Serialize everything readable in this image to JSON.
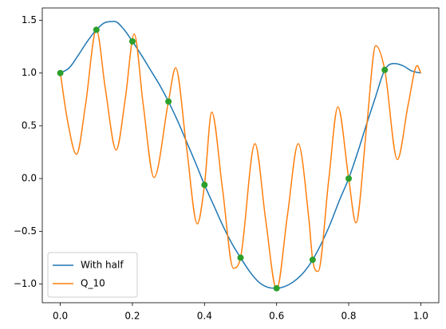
{
  "chart_data": {
    "type": "line",
    "xlim": [
      -0.05,
      1.05
    ],
    "ylim": [
      -1.177,
      1.617
    ],
    "xticks": [
      {
        "value": 0,
        "label": "0.0"
      },
      {
        "value": 0.2,
        "label": "0.2"
      },
      {
        "value": 0.4,
        "label": "0.4"
      },
      {
        "value": 0.6,
        "label": "0.6"
      },
      {
        "value": 0.8,
        "label": "0.8"
      },
      {
        "value": 1,
        "label": "1.0"
      }
    ],
    "yticks": [
      {
        "value": -1,
        "label": "−1.0"
      },
      {
        "value": -0.5,
        "label": "−0.5"
      },
      {
        "value": 0,
        "label": "0.0"
      },
      {
        "value": 0.5,
        "label": "0.5"
      },
      {
        "value": 1,
        "label": "1.0"
      },
      {
        "value": 1.5,
        "label": "1.5"
      }
    ],
    "grid": false,
    "legend": "lower left",
    "series": [
      {
        "name": "With half",
        "color": "#1f77b4",
        "x": [
          0,
          0.025,
          0.05,
          0.075,
          0.1,
          0.125,
          0.15,
          0.175,
          0.2,
          0.225,
          0.25,
          0.275,
          0.3,
          0.325,
          0.35,
          0.375,
          0.4,
          0.425,
          0.45,
          0.475,
          0.5,
          0.525,
          0.55,
          0.575,
          0.6,
          0.625,
          0.65,
          0.675,
          0.7,
          0.725,
          0.75,
          0.775,
          0.8,
          0.825,
          0.85,
          0.875,
          0.9,
          0.925,
          0.95,
          0.975,
          1
        ],
        "values": [
          1.0,
          1.05,
          1.17,
          1.3,
          1.41,
          1.48,
          1.49,
          1.42,
          1.3,
          1.17,
          1.03,
          0.89,
          0.73,
          0.55,
          0.35,
          0.15,
          -0.06,
          -0.25,
          -0.44,
          -0.61,
          -0.75,
          -0.88,
          -0.98,
          -1.03,
          -1.04,
          -1.02,
          -0.97,
          -0.89,
          -0.77,
          -0.61,
          -0.42,
          -0.2,
          0.0,
          0.25,
          0.52,
          0.78,
          1.03,
          1.09,
          1.07,
          1.02,
          1.0
        ]
      },
      {
        "name": "Q_10",
        "color": "#ff7f0e",
        "x": [
          0,
          0.02,
          0.045,
          0.07,
          0.1,
          0.125,
          0.155,
          0.18,
          0.205,
          0.23,
          0.26,
          0.3,
          0.32,
          0.35,
          0.38,
          0.4,
          0.42,
          0.45,
          0.48,
          0.5,
          0.54,
          0.57,
          0.6,
          0.63,
          0.66,
          0.69,
          0.7,
          0.715,
          0.745,
          0.77,
          0.8,
          0.82,
          0.85,
          0.875,
          0.9,
          0.935,
          0.965,
          0.99,
          1
        ],
        "values": [
          1.0,
          0.55,
          0.23,
          0.7,
          1.41,
          0.85,
          0.27,
          0.75,
          1.37,
          0.7,
          0.01,
          0.73,
          1.05,
          0.3,
          -0.43,
          -0.06,
          0.63,
          -0.1,
          -0.85,
          -0.75,
          0.33,
          -0.4,
          -1.05,
          -0.35,
          0.33,
          -0.4,
          -0.77,
          -0.88,
          0.0,
          0.68,
          0.0,
          -0.42,
          0.5,
          1.26,
          1.03,
          0.18,
          0.7,
          1.07,
          1.0
        ]
      }
    ],
    "markers": {
      "color": "#2ca02c",
      "x": [
        0,
        0.1,
        0.2,
        0.3,
        0.4,
        0.5,
        0.6,
        0.7,
        0.8,
        0.9
      ],
      "values": [
        1.0,
        1.41,
        1.3,
        0.73,
        -0.06,
        -0.75,
        -1.04,
        -0.77,
        0.0,
        1.03
      ]
    }
  }
}
